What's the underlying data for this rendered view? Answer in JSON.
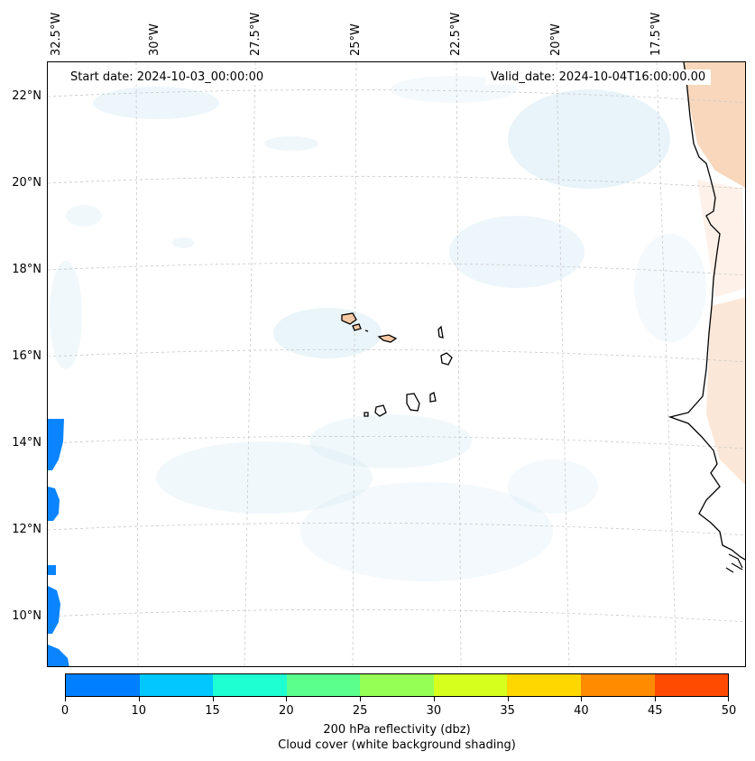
{
  "map": {
    "start_date": "Start date: 2024-10-03_00:00:00",
    "valid_date": "Valid_date: 2024-10-04T16:00:00.00",
    "longitude_labels": [
      "32.5°W",
      "30°W",
      "27.5°W",
      "25°W",
      "22.5°W",
      "20°W",
      "17.5°W"
    ],
    "latitude_labels": [
      "22°N",
      "20°N",
      "18°N",
      "16°N",
      "14°N",
      "12°N",
      "10°N"
    ]
  },
  "colorbar": {
    "tick_labels": [
      "0",
      "10",
      "15",
      "20",
      "25",
      "30",
      "35",
      "40",
      "45",
      "50"
    ],
    "colors": [
      "#007fff",
      "#00c8ff",
      "#1effd2",
      "#5aff8c",
      "#96ff55",
      "#d7ff1e",
      "#ffd700",
      "#ff8c00",
      "#ff4b00"
    ],
    "label_line1": "200 hPa reflectivity (dbz)",
    "label_line2": "Cloud cover (white background shading)"
  },
  "colors": {
    "cloud": "#d6ebf4",
    "land_warm": "#f6c9a6",
    "reflectivity_low": "#0a84ff"
  }
}
